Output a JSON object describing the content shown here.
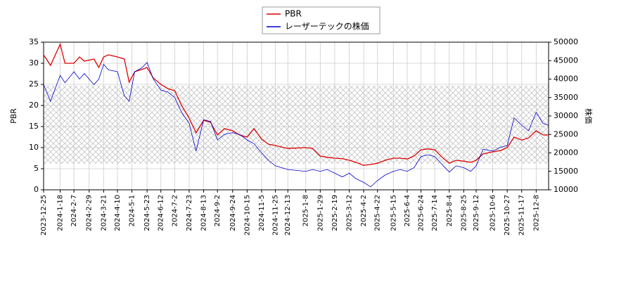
{
  "chart_data": {
    "type": "line",
    "y_label": "PBR",
    "y2_label": "株価",
    "x": [
      "2023-12-25",
      "2024-1-4",
      "2024-1-18",
      "2024-1-25",
      "2024-2-7",
      "2024-2-15",
      "2024-2-22",
      "2024-3-7",
      "2024-3-14",
      "2024-3-21",
      "2024-3-28",
      "2024-4-10",
      "2024-4-20",
      "2024-4-27",
      "2024-5-5",
      "2024-5-15",
      "2024-5-23",
      "2024-6-1",
      "2024-6-12",
      "2024-6-22",
      "2024-7-2",
      "2024-7-12",
      "2024-7-23",
      "2024-8-2",
      "2024-8-13",
      "2024-8-23",
      "2024-9-2",
      "2024-9-12",
      "2024-9-24",
      "2024-10-4",
      "2024-10-15",
      "2024-10-25",
      "2024-11-5",
      "2024-11-15",
      "2024-11-25",
      "2024-12-13",
      "2025-1-8",
      "2025-1-18",
      "2025-1-29",
      "2025-2-8",
      "2025-2-19",
      "2025-3-2",
      "2025-3-12",
      "2025-3-22",
      "2025-4-2",
      "2025-4-12",
      "2025-4-22",
      "2025-5-3",
      "2025-5-15",
      "2025-5-25",
      "2025-6-4",
      "2025-6-14",
      "2025-6-24",
      "2025-7-4",
      "2025-7-14",
      "2025-7-24",
      "2025-8-4",
      "2025-8-14",
      "2025-8-25",
      "2025-9-4",
      "2025-9-12",
      "2025-9-22",
      "2025-10-6",
      "2025-10-17",
      "2025-10-27",
      "2025-11-6",
      "2025-11-17",
      "2025-11-27",
      "2025-12-8",
      "2025-12-18",
      "2025-12-26"
    ],
    "series": [
      {
        "name": "PBR",
        "color": "#dd0000",
        "axis": "y",
        "values": [
          32,
          29.5,
          34.5,
          30,
          30,
          31.5,
          30.5,
          31,
          29,
          31.5,
          32,
          31.5,
          31,
          25.5,
          28,
          28.5,
          29,
          26.5,
          25,
          24,
          23.5,
          20,
          17,
          13.5,
          16.5,
          16,
          13,
          14.5,
          14,
          13,
          12.5,
          14.5,
          12,
          10.8,
          10.5,
          9.8,
          10,
          9.8,
          8,
          7.7,
          7.5,
          7.4,
          7,
          6.5,
          5.8,
          6,
          6.3,
          7,
          7.5,
          7.5,
          7.3,
          8,
          9.5,
          9.7,
          9.5,
          7.8,
          6.3,
          7,
          6.8,
          6.5,
          7,
          8.5,
          9,
          9.3,
          10,
          12.5,
          11.8,
          12.3,
          14,
          13,
          13
        ]
      },
      {
        "name": "レーザーテックの株価",
        "color": "#0000cc",
        "axis": "y2",
        "values": [
          38500,
          34000,
          41000,
          39000,
          42000,
          40000,
          41500,
          38500,
          40000,
          44000,
          42500,
          42000,
          35500,
          34000,
          42000,
          43000,
          44500,
          40000,
          37000,
          36500,
          35000,
          31000,
          28000,
          20500,
          29000,
          28500,
          23500,
          25000,
          25500,
          25000,
          23500,
          22500,
          20000,
          18000,
          16500,
          15500,
          15000,
          15500,
          15000,
          15500,
          14500,
          13500,
          14500,
          13000,
          12000,
          10800,
          12500,
          14000,
          15000,
          15500,
          15000,
          16000,
          19000,
          19500,
          19000,
          17000,
          14800,
          16500,
          16000,
          15000,
          16500,
          21000,
          20500,
          21500,
          22000,
          29500,
          27500,
          26000,
          31000,
          28000,
          27500
        ]
      }
    ],
    "shaded_range": [
      6.2,
      24.7
    ],
    "xlim": [
      "2023-12-25",
      "2025-12-26"
    ],
    "xticks": [
      "2023-12-25",
      "2024-1-18",
      "2024-2-7",
      "2024-2-29",
      "2024-3-21",
      "2024-4-10",
      "2024-5-1",
      "2024-5-23",
      "2024-6-12",
      "2024-7-2",
      "2024-7-23",
      "2024-8-13",
      "2024-9-2",
      "2024-9-24",
      "2024-10-15",
      "2024-11-5",
      "2024-11-25",
      "2024-12-13",
      "2025-1-8",
      "2025-1-29",
      "2025-2-19",
      "2025-3-12",
      "2025-4-2",
      "2025-4-22",
      "2025-5-15",
      "2025-6-4",
      "2025-6-24",
      "2025-7-14",
      "2025-8-4",
      "2025-8-25",
      "2025-9-12",
      "2025-10-6",
      "2025-10-27",
      "2025-11-17",
      "2025-12-8"
    ],
    "ylim": [
      0,
      35
    ],
    "yticks": [
      0,
      5,
      10,
      15,
      20,
      25,
      30,
      35
    ],
    "y2lim": [
      10000,
      50000
    ],
    "y2ticks": [
      10000,
      15000,
      20000,
      25000,
      30000,
      35000,
      40000,
      45000,
      50000
    ],
    "grid": true
  }
}
